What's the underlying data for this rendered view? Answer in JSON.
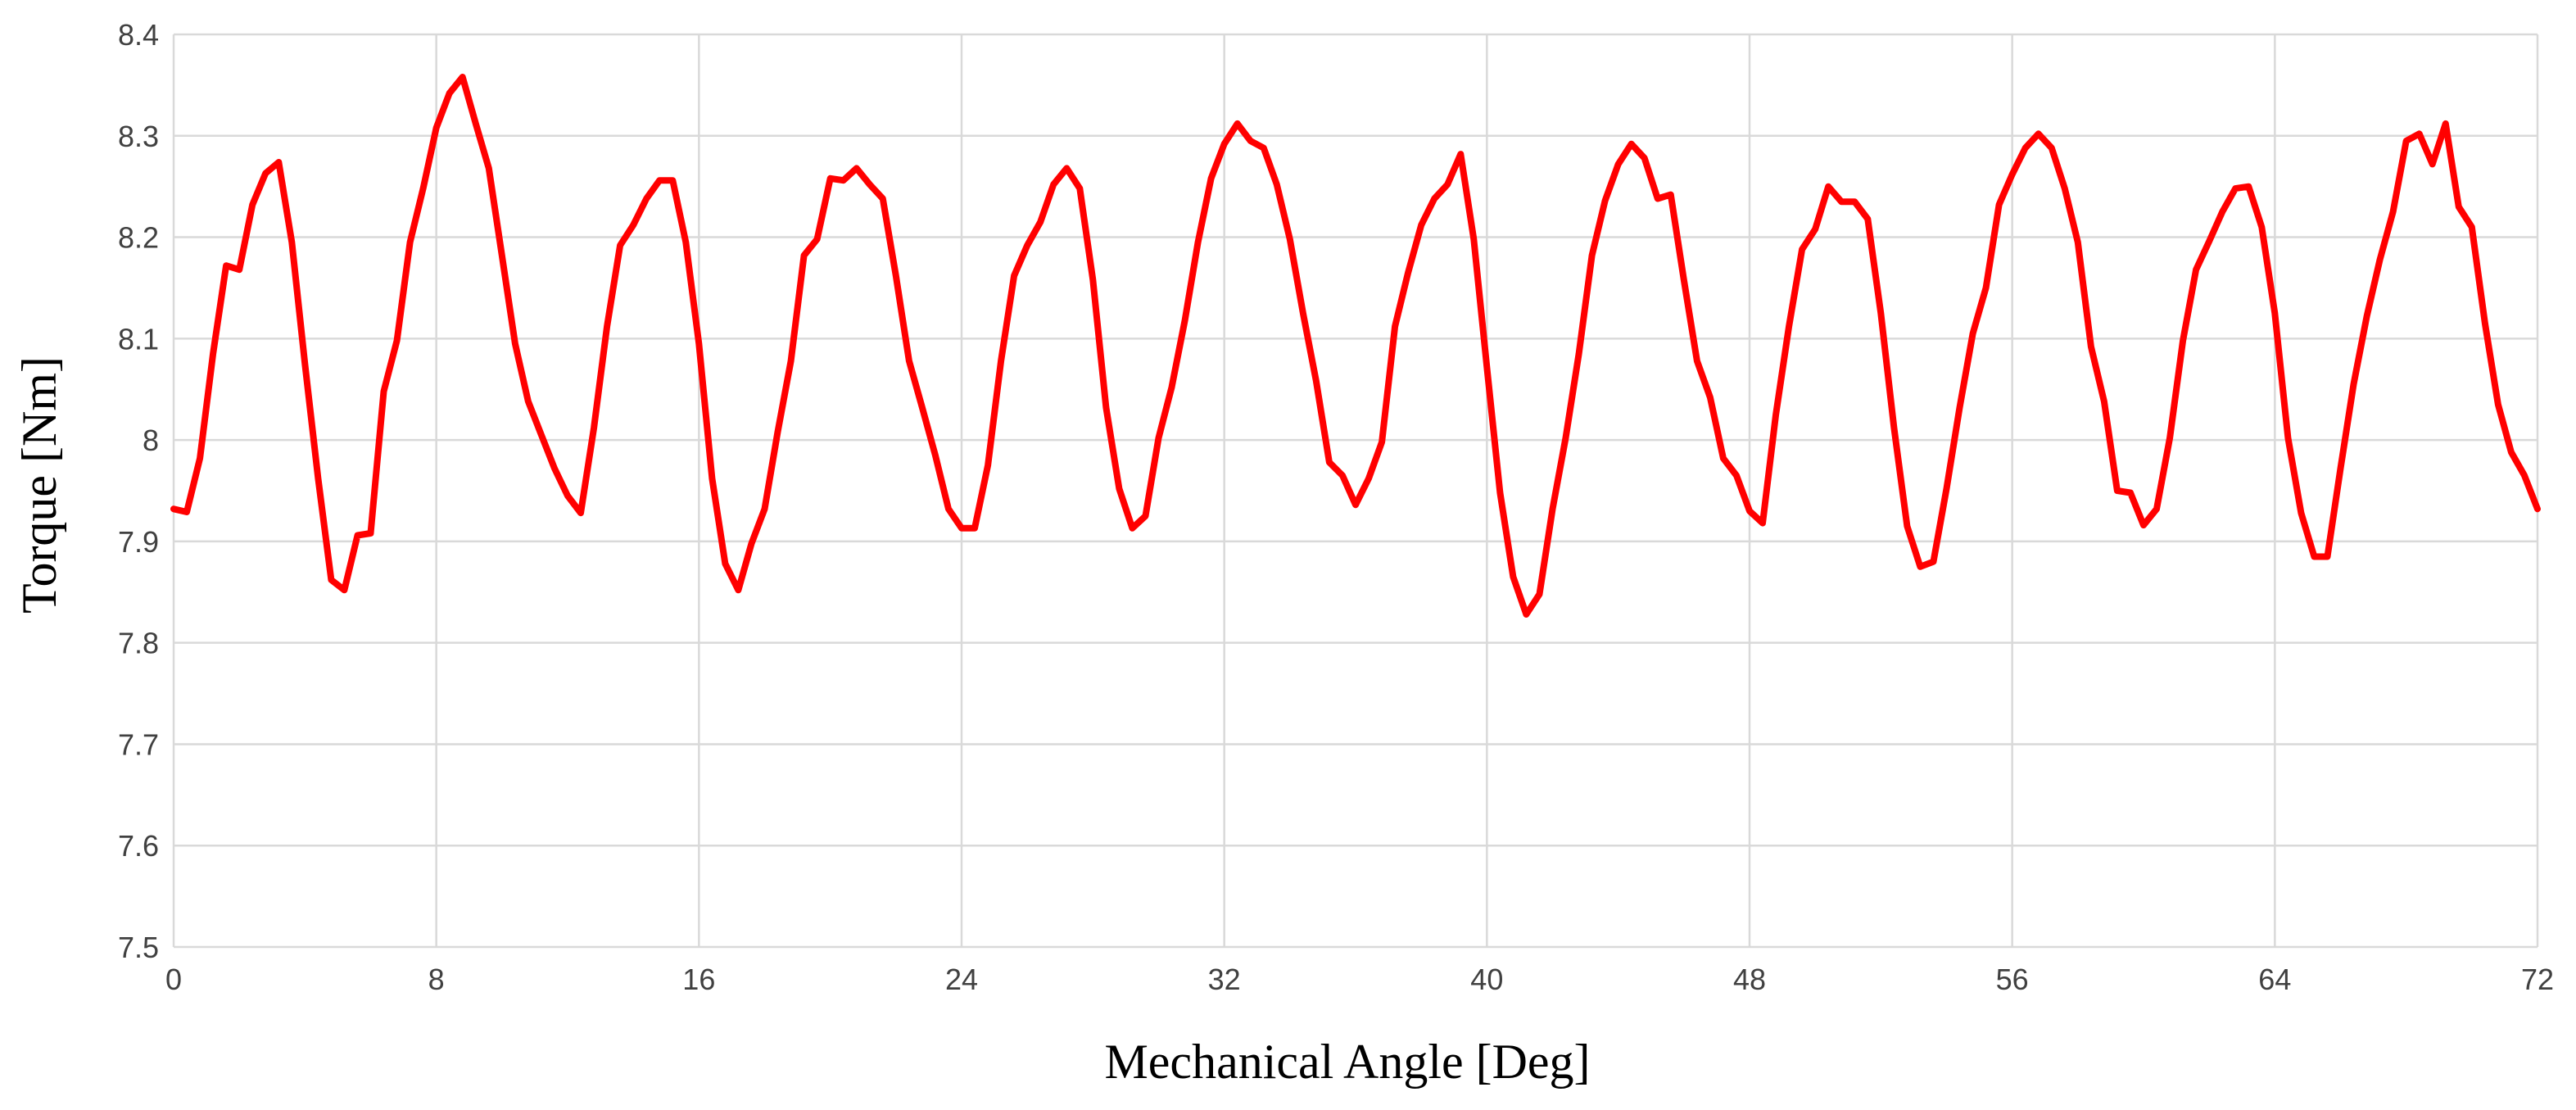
{
  "chart_data": {
    "type": "line",
    "title": "",
    "xlabel": "Mechanical Angle [Deg]",
    "ylabel": "Torque [Nm]",
    "xlim": [
      0,
      72
    ],
    "ylim": [
      7.5,
      8.4
    ],
    "x_ticks": [
      "0",
      "8",
      "16",
      "24",
      "32",
      "40",
      "48",
      "56",
      "64",
      "72"
    ],
    "y_ticks": [
      "7.5",
      "7.6",
      "7.7",
      "7.8",
      "7.9",
      "8",
      "8.1",
      "8.2",
      "8.3",
      "8.4"
    ],
    "grid": true,
    "legend": "none",
    "series_color": "#ff0000",
    "series": [
      {
        "x": [
          0,
          0.4,
          0.8,
          1.2,
          1.6,
          2.0,
          2.4,
          2.8,
          3.2,
          3.6,
          4.0,
          4.4,
          4.8,
          5.2,
          5.6,
          6.0,
          6.4,
          6.8,
          7.2,
          7.6,
          8.0,
          8.4,
          8.8,
          9.2,
          9.6,
          10.0,
          10.4,
          10.8,
          11.2,
          11.6,
          12.0,
          12.4,
          12.8,
          13.2,
          13.6,
          14.0,
          14.4,
          14.8,
          15.2,
          15.6,
          16.0,
          16.4,
          16.8,
          17.2,
          17.6,
          18.0,
          18.4,
          18.8,
          19.2,
          19.6,
          20.0,
          20.4,
          20.8,
          21.2,
          21.6,
          22.0,
          22.4,
          22.8,
          23.2,
          23.6,
          24.0,
          24.4,
          24.8,
          25.2,
          25.6,
          26.0,
          26.4,
          26.8,
          27.2,
          27.6,
          28.0,
          28.4,
          28.8,
          29.2,
          29.6,
          30.0,
          30.4,
          30.8,
          31.2,
          31.6,
          32.0,
          32.4,
          32.8,
          33.2,
          33.6,
          34.0,
          34.4,
          34.8,
          35.2,
          35.6,
          36.0,
          36.4,
          36.8,
          37.2,
          37.6,
          38.0,
          38.4,
          38.8,
          39.2,
          39.6,
          40.0,
          40.4,
          40.8,
          41.2,
          41.6,
          42.0,
          42.4,
          42.8,
          43.2,
          43.6,
          44.0,
          44.4,
          44.8,
          45.2,
          45.6,
          46.0,
          46.4,
          46.8,
          47.2,
          47.6,
          48.0,
          48.4,
          48.8,
          49.2,
          49.6,
          50.0,
          50.4,
          50.8,
          51.2,
          51.6,
          52.0,
          52.4,
          52.8,
          53.2,
          53.6,
          54.0,
          54.4,
          54.8,
          55.2,
          55.6,
          56.0,
          56.4,
          56.8,
          57.2,
          57.6,
          58.0,
          58.4,
          58.8,
          59.2,
          59.6,
          60.0,
          60.4,
          60.8,
          61.2,
          61.6,
          62.0,
          62.4,
          62.8,
          63.2,
          63.6,
          64.0,
          64.4,
          64.8,
          65.2,
          65.6,
          66.0,
          66.4,
          66.8,
          67.2,
          67.6,
          68.0,
          68.4,
          68.8,
          69.2,
          69.6,
          70.0,
          70.4,
          70.8,
          71.2,
          71.6,
          72.0
        ],
        "values": [
          7.932,
          7.929,
          7.982,
          8.085,
          8.172,
          8.168,
          8.232,
          8.263,
          8.274,
          8.195,
          8.075,
          7.962,
          7.862,
          7.852,
          7.906,
          7.908,
          8.048,
          8.098,
          8.195,
          8.248,
          8.308,
          8.342,
          8.358,
          8.312,
          8.268,
          8.182,
          8.095,
          8.038,
          8.005,
          7.972,
          7.945,
          7.928,
          8.012,
          8.112,
          8.192,
          8.212,
          8.238,
          8.256,
          8.256,
          8.195,
          8.095,
          7.962,
          7.878,
          7.852,
          7.898,
          7.932,
          8.008,
          8.078,
          8.182,
          8.198,
          8.258,
          8.256,
          8.268,
          8.252,
          8.238,
          8.162,
          8.078,
          8.032,
          7.985,
          7.932,
          7.913,
          7.913,
          7.975,
          8.078,
          8.162,
          8.192,
          8.215,
          8.252,
          8.268,
          8.248,
          8.158,
          8.032,
          7.952,
          7.913,
          7.925,
          8.002,
          8.052,
          8.118,
          8.195,
          8.258,
          8.292,
          8.312,
          8.295,
          8.288,
          8.252,
          8.198,
          8.125,
          8.058,
          7.978,
          7.965,
          7.936,
          7.962,
          7.998,
          8.112,
          8.165,
          8.212,
          8.238,
          8.252,
          8.282,
          8.198,
          8.072,
          7.948,
          7.865,
          7.828,
          7.848,
          7.932,
          8.002,
          8.085,
          8.182,
          8.236,
          8.272,
          8.292,
          8.278,
          8.238,
          8.242,
          8.158,
          8.078,
          8.042,
          7.982,
          7.965,
          7.93,
          7.918,
          8.025,
          8.112,
          8.188,
          8.208,
          8.25,
          8.235,
          8.235,
          8.218,
          8.125,
          8.012,
          7.915,
          7.875,
          7.88,
          7.952,
          8.032,
          8.105,
          8.15,
          8.232,
          8.262,
          8.288,
          8.302,
          8.288,
          8.248,
          8.195,
          8.092,
          8.038,
          7.95,
          7.948,
          7.916,
          7.932,
          8.002,
          8.098,
          8.168,
          8.196,
          8.225,
          8.248,
          8.25,
          8.21,
          8.125,
          8.002,
          7.928,
          7.885,
          7.885,
          7.972,
          8.055,
          8.122,
          8.178,
          8.225,
          8.295,
          8.302,
          8.272,
          8.312,
          8.23,
          8.21,
          8.115,
          8.035,
          7.988,
          7.965,
          7.932
        ]
      }
    ]
  }
}
